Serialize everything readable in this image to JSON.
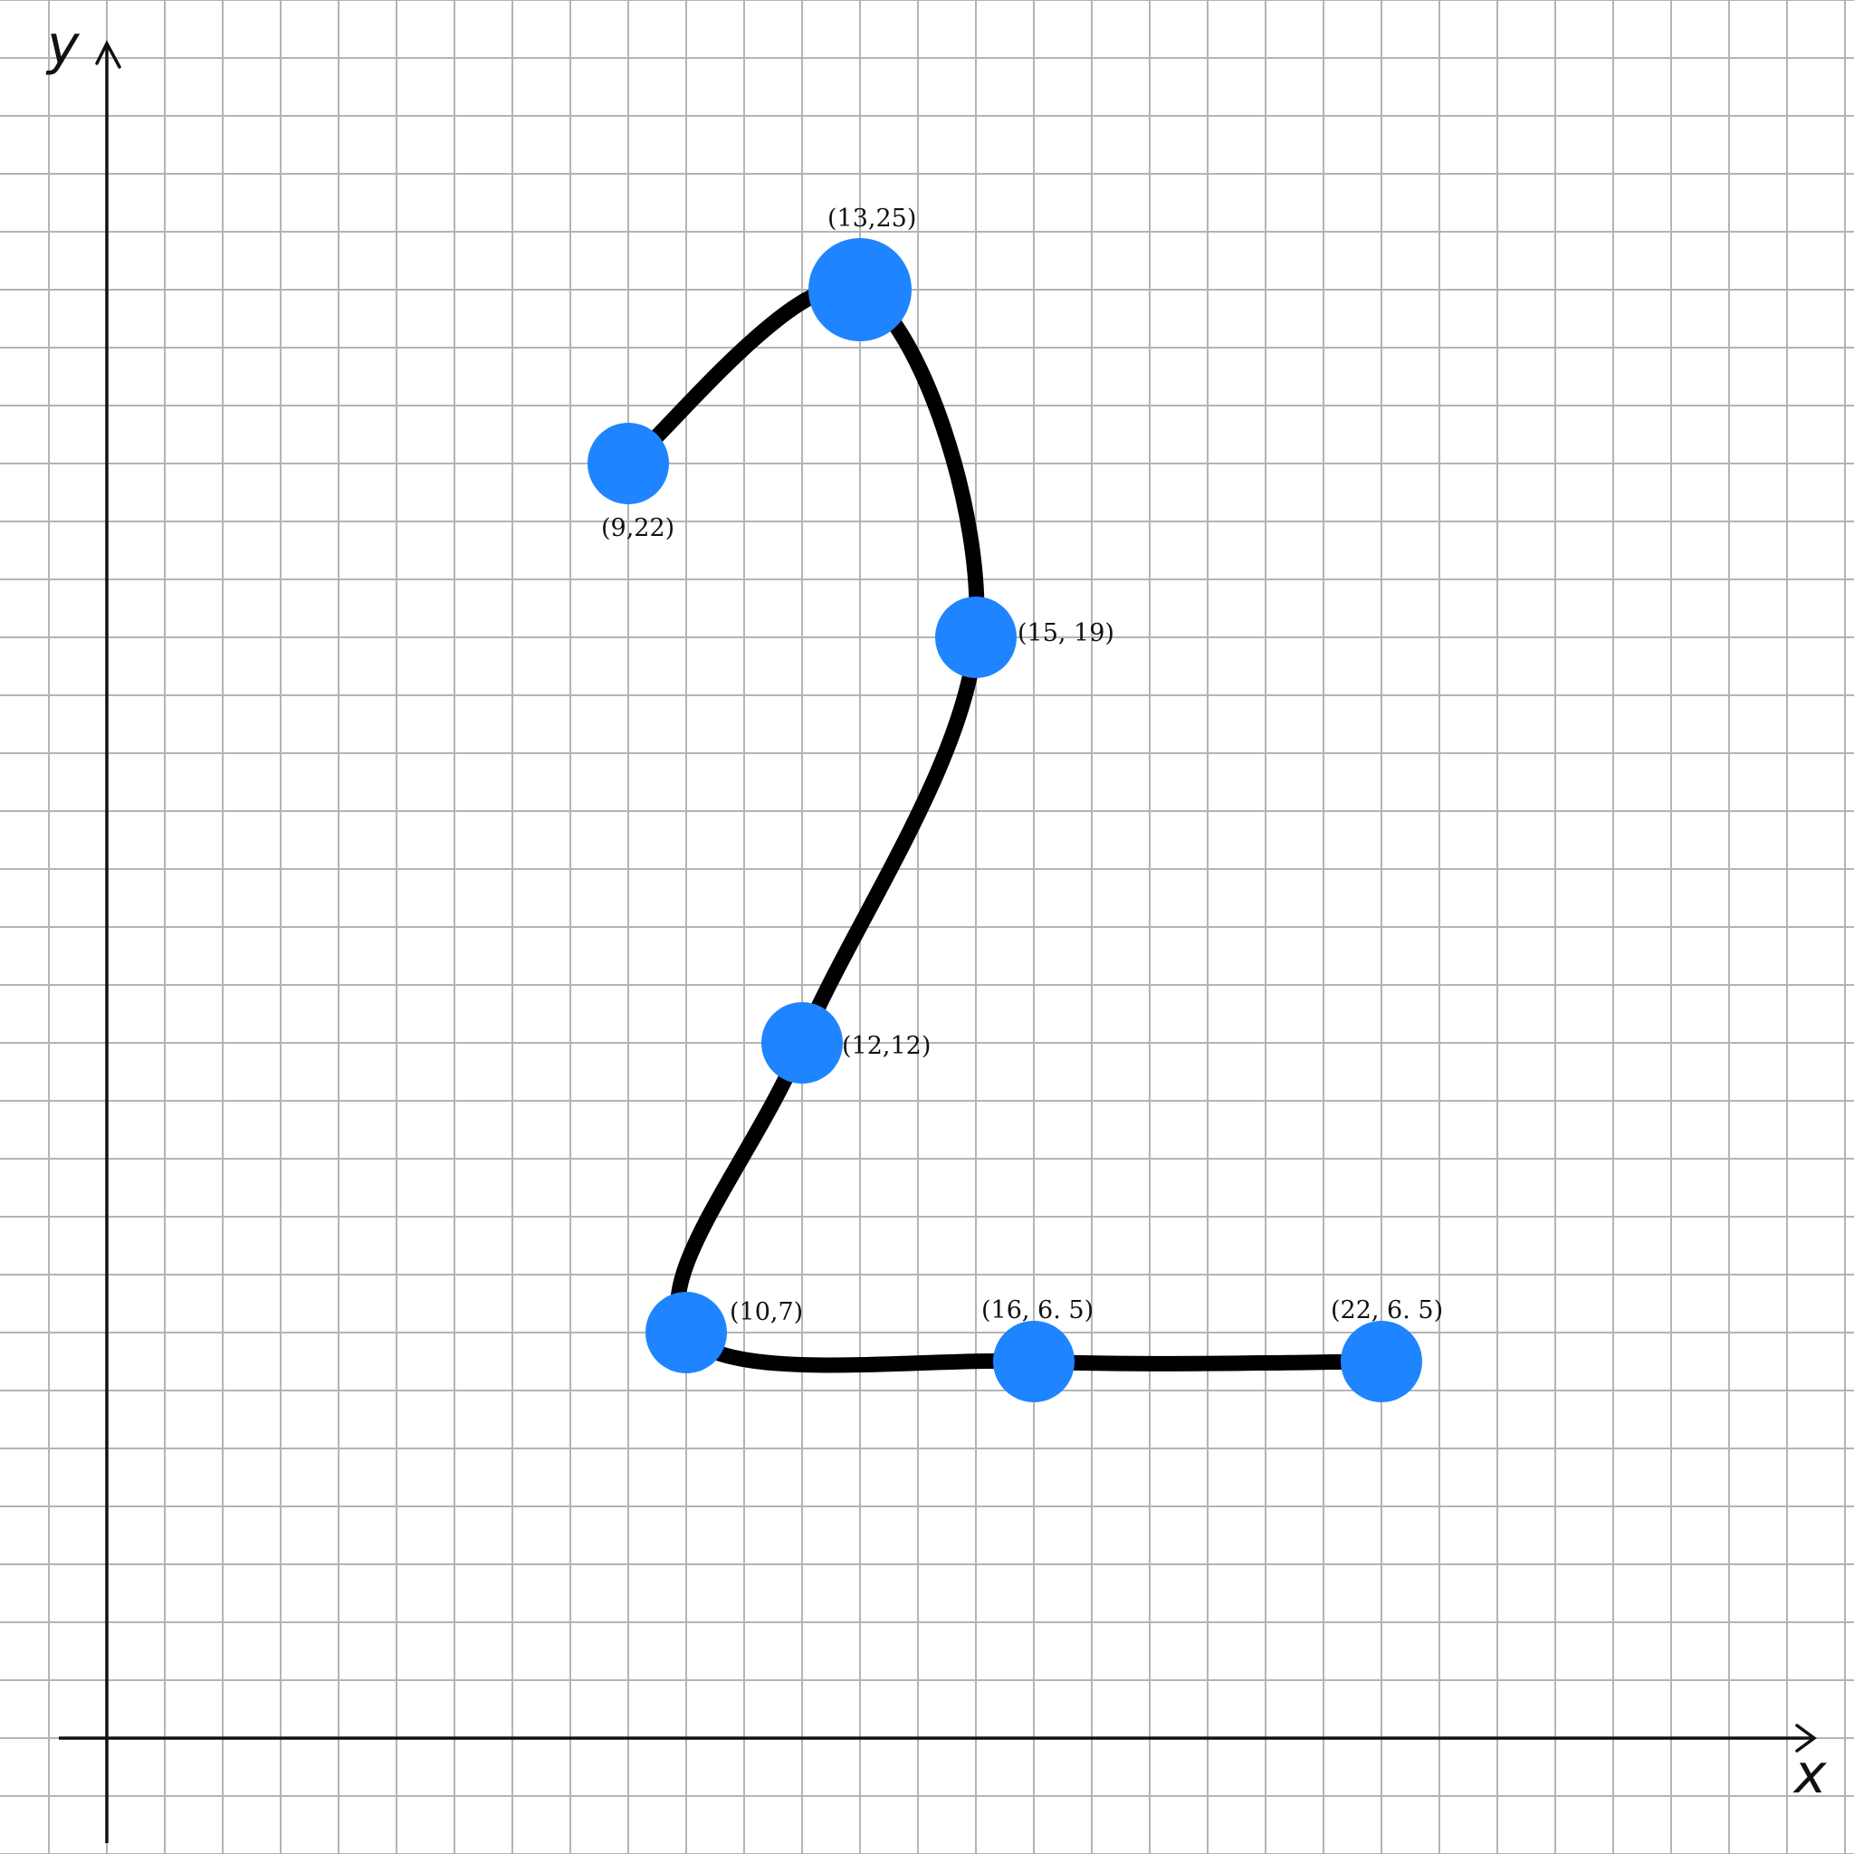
{
  "chart_data": {
    "type": "line",
    "title": "",
    "xlabel": "x",
    "ylabel": "y",
    "grid": true,
    "legend": "none",
    "xlim": [
      -1,
      30
    ],
    "ylim": [
      -2,
      31
    ],
    "series": [
      {
        "points": [
          {
            "x": 9,
            "y": 22,
            "label": "(9,22)"
          },
          {
            "x": 13,
            "y": 25,
            "label": "(13,25)"
          },
          {
            "x": 15,
            "y": 19,
            "label": "(15, 19)"
          },
          {
            "x": 12,
            "y": 12,
            "label": "(12,12)"
          },
          {
            "x": 10,
            "y": 7,
            "label": "(10,7)"
          },
          {
            "x": 16,
            "y": 6.5,
            "label": "(16, 6. 5)"
          },
          {
            "x": 22,
            "y": 6.5,
            "label": "(22, 6. 5)"
          }
        ]
      }
    ],
    "colors": {
      "background": "#ffffff",
      "grid": "#b4b4b4",
      "axis": "#111111",
      "curve": "#000000",
      "marker": "#1f84ff",
      "label": "#111111"
    }
  }
}
